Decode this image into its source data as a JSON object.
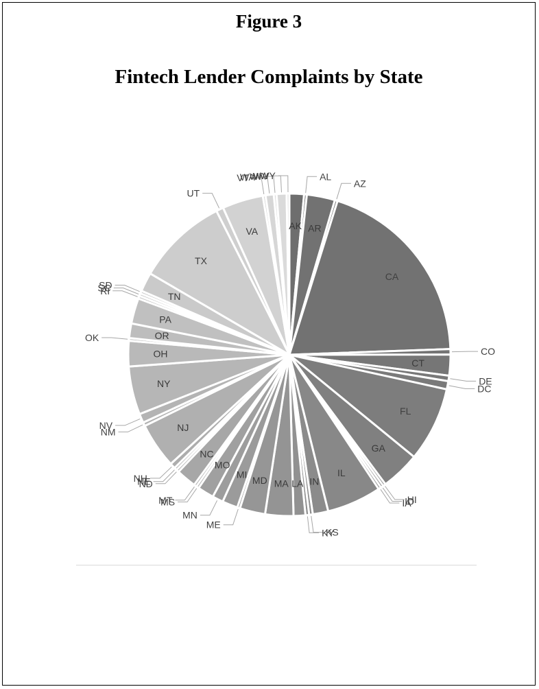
{
  "figure": {
    "label": "Figure 3",
    "title": "Fintech Lender Complaints by State"
  },
  "chart_data": {
    "type": "pie",
    "title": "Fintech Lender Complaints by State",
    "legend": "none",
    "slices": [
      {
        "label": "AK",
        "value": 1.6,
        "color": "#6e6e6e"
      },
      {
        "label": "AL",
        "value": 0.3,
        "color": "#707070"
      },
      {
        "label": "AR",
        "value": 3.1,
        "color": "#727272"
      },
      {
        "label": "AZ",
        "value": 0.3,
        "color": "#727272"
      },
      {
        "label": "CA",
        "value": 21.5,
        "color": "#727272"
      },
      {
        "label": "CO",
        "value": 0.6,
        "color": "#747474"
      },
      {
        "label": "CT",
        "value": 2.3,
        "color": "#767676"
      },
      {
        "label": "DE",
        "value": 0.6,
        "color": "#787878"
      },
      {
        "label": "DC",
        "value": 0.9,
        "color": "#7a7a7a"
      },
      {
        "label": "FL",
        "value": 8.2,
        "color": "#7d7d7d"
      },
      {
        "label": "GA",
        "value": 4.3,
        "color": "#808080"
      },
      {
        "label": "HI",
        "value": 0.3,
        "color": "#838383"
      },
      {
        "label": "ID",
        "value": 0.3,
        "color": "#858585"
      },
      {
        "label": "IA",
        "value": 0.3,
        "color": "#868686"
      },
      {
        "label": "IL",
        "value": 6.0,
        "color": "#888888"
      },
      {
        "label": "IN",
        "value": 1.7,
        "color": "#8b8b8b"
      },
      {
        "label": "KS",
        "value": 0.4,
        "color": "#8d8d8d"
      },
      {
        "label": "KY",
        "value": 0.4,
        "color": "#8f8f8f"
      },
      {
        "label": "LA",
        "value": 1.3,
        "color": "#919191"
      },
      {
        "label": "MA",
        "value": 3.1,
        "color": "#949494"
      },
      {
        "label": "MD",
        "value": 2.8,
        "color": "#969696"
      },
      {
        "label": "ME",
        "value": 0.3,
        "color": "#999999"
      },
      {
        "label": "MI",
        "value": 1.7,
        "color": "#9b9b9b"
      },
      {
        "label": "MN",
        "value": 1.2,
        "color": "#9d9d9d"
      },
      {
        "label": "MO",
        "value": 1.8,
        "color": "#a0a0a0"
      },
      {
        "label": "MS",
        "value": 0.3,
        "color": "#a2a2a2"
      },
      {
        "label": "MT",
        "value": 0.3,
        "color": "#a5a5a5"
      },
      {
        "label": "NC",
        "value": 2.2,
        "color": "#a7a7a7"
      },
      {
        "label": "ND",
        "value": 0.3,
        "color": "#a9a9a9"
      },
      {
        "label": "NE",
        "value": 0.3,
        "color": "#abababf"
      },
      {
        "label": "NH",
        "value": 0.6,
        "color": "#adadad"
      },
      {
        "label": "NJ",
        "value": 5.0,
        "color": "#b0b0b0"
      },
      {
        "label": "NM",
        "value": 0.4,
        "color": "#b2b2b2"
      },
      {
        "label": "NV",
        "value": 1.0,
        "color": "#b4b4b4"
      },
      {
        "label": "NY",
        "value": 5.3,
        "color": "#b6b6b6"
      },
      {
        "label": "OH",
        "value": 2.8,
        "color": "#b9b9b9"
      },
      {
        "label": "OK",
        "value": 0.3,
        "color": "#bbbbbb"
      },
      {
        "label": "OR",
        "value": 1.6,
        "color": "#bdbdbd"
      },
      {
        "label": "PA",
        "value": 2.8,
        "color": "#c0c0c0"
      },
      {
        "label": "RI",
        "value": 0.3,
        "color": "#c3c3c3"
      },
      {
        "label": "SC",
        "value": 0.3,
        "color": "#c5c5c5"
      },
      {
        "label": "SD",
        "value": 0.3,
        "color": "#c8c8c8"
      },
      {
        "label": "TN",
        "value": 2.1,
        "color": "#cacaca"
      },
      {
        "label": "TX",
        "value": 10.0,
        "color": "#cdcdcd"
      },
      {
        "label": "UT",
        "value": 0.8,
        "color": "#cfcfcf"
      },
      {
        "label": "VA",
        "value": 4.5,
        "color": "#d2d2d2"
      },
      {
        "label": "VT",
        "value": 0.3,
        "color": "#d4d4d4"
      },
      {
        "label": "WA",
        "value": 0.9,
        "color": "#d6d6d6"
      },
      {
        "label": "WI",
        "value": 0.3,
        "color": "#d8d8d8"
      },
      {
        "label": "WV",
        "value": 1.1,
        "color": "#dadada"
      },
      {
        "label": "WY",
        "value": 0.3,
        "color": "#dcdcdc"
      }
    ]
  }
}
